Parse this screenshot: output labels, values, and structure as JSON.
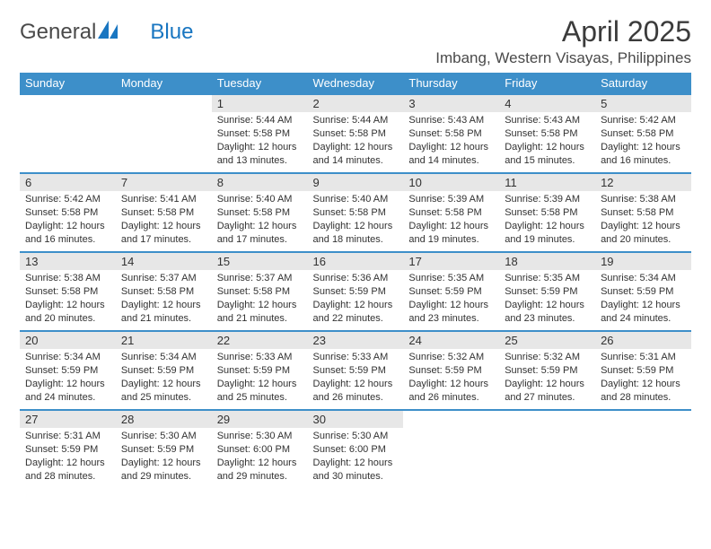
{
  "brand": {
    "part1": "General",
    "part2": "Blue"
  },
  "title": "April 2025",
  "location": "Imbang, Western Visayas, Philippines",
  "colors": {
    "header_bg": "#3d8fc9",
    "header_text": "#ffffff",
    "daynum_bg": "#e7e7e7",
    "row_border": "#3d8fc9",
    "logo_blue": "#1976c1",
    "logo_gray": "#4a4a4a"
  },
  "weekdays": [
    "Sunday",
    "Monday",
    "Tuesday",
    "Wednesday",
    "Thursday",
    "Friday",
    "Saturday"
  ],
  "rows": [
    [
      null,
      null,
      {
        "n": "1",
        "sr": "Sunrise: 5:44 AM",
        "ss": "Sunset: 5:58 PM",
        "d1": "Daylight: 12 hours",
        "d2": "and 13 minutes."
      },
      {
        "n": "2",
        "sr": "Sunrise: 5:44 AM",
        "ss": "Sunset: 5:58 PM",
        "d1": "Daylight: 12 hours",
        "d2": "and 14 minutes."
      },
      {
        "n": "3",
        "sr": "Sunrise: 5:43 AM",
        "ss": "Sunset: 5:58 PM",
        "d1": "Daylight: 12 hours",
        "d2": "and 14 minutes."
      },
      {
        "n": "4",
        "sr": "Sunrise: 5:43 AM",
        "ss": "Sunset: 5:58 PM",
        "d1": "Daylight: 12 hours",
        "d2": "and 15 minutes."
      },
      {
        "n": "5",
        "sr": "Sunrise: 5:42 AM",
        "ss": "Sunset: 5:58 PM",
        "d1": "Daylight: 12 hours",
        "d2": "and 16 minutes."
      }
    ],
    [
      {
        "n": "6",
        "sr": "Sunrise: 5:42 AM",
        "ss": "Sunset: 5:58 PM",
        "d1": "Daylight: 12 hours",
        "d2": "and 16 minutes."
      },
      {
        "n": "7",
        "sr": "Sunrise: 5:41 AM",
        "ss": "Sunset: 5:58 PM",
        "d1": "Daylight: 12 hours",
        "d2": "and 17 minutes."
      },
      {
        "n": "8",
        "sr": "Sunrise: 5:40 AM",
        "ss": "Sunset: 5:58 PM",
        "d1": "Daylight: 12 hours",
        "d2": "and 17 minutes."
      },
      {
        "n": "9",
        "sr": "Sunrise: 5:40 AM",
        "ss": "Sunset: 5:58 PM",
        "d1": "Daylight: 12 hours",
        "d2": "and 18 minutes."
      },
      {
        "n": "10",
        "sr": "Sunrise: 5:39 AM",
        "ss": "Sunset: 5:58 PM",
        "d1": "Daylight: 12 hours",
        "d2": "and 19 minutes."
      },
      {
        "n": "11",
        "sr": "Sunrise: 5:39 AM",
        "ss": "Sunset: 5:58 PM",
        "d1": "Daylight: 12 hours",
        "d2": "and 19 minutes."
      },
      {
        "n": "12",
        "sr": "Sunrise: 5:38 AM",
        "ss": "Sunset: 5:58 PM",
        "d1": "Daylight: 12 hours",
        "d2": "and 20 minutes."
      }
    ],
    [
      {
        "n": "13",
        "sr": "Sunrise: 5:38 AM",
        "ss": "Sunset: 5:58 PM",
        "d1": "Daylight: 12 hours",
        "d2": "and 20 minutes."
      },
      {
        "n": "14",
        "sr": "Sunrise: 5:37 AM",
        "ss": "Sunset: 5:58 PM",
        "d1": "Daylight: 12 hours",
        "d2": "and 21 minutes."
      },
      {
        "n": "15",
        "sr": "Sunrise: 5:37 AM",
        "ss": "Sunset: 5:58 PM",
        "d1": "Daylight: 12 hours",
        "d2": "and 21 minutes."
      },
      {
        "n": "16",
        "sr": "Sunrise: 5:36 AM",
        "ss": "Sunset: 5:59 PM",
        "d1": "Daylight: 12 hours",
        "d2": "and 22 minutes."
      },
      {
        "n": "17",
        "sr": "Sunrise: 5:35 AM",
        "ss": "Sunset: 5:59 PM",
        "d1": "Daylight: 12 hours",
        "d2": "and 23 minutes."
      },
      {
        "n": "18",
        "sr": "Sunrise: 5:35 AM",
        "ss": "Sunset: 5:59 PM",
        "d1": "Daylight: 12 hours",
        "d2": "and 23 minutes."
      },
      {
        "n": "19",
        "sr": "Sunrise: 5:34 AM",
        "ss": "Sunset: 5:59 PM",
        "d1": "Daylight: 12 hours",
        "d2": "and 24 minutes."
      }
    ],
    [
      {
        "n": "20",
        "sr": "Sunrise: 5:34 AM",
        "ss": "Sunset: 5:59 PM",
        "d1": "Daylight: 12 hours",
        "d2": "and 24 minutes."
      },
      {
        "n": "21",
        "sr": "Sunrise: 5:34 AM",
        "ss": "Sunset: 5:59 PM",
        "d1": "Daylight: 12 hours",
        "d2": "and 25 minutes."
      },
      {
        "n": "22",
        "sr": "Sunrise: 5:33 AM",
        "ss": "Sunset: 5:59 PM",
        "d1": "Daylight: 12 hours",
        "d2": "and 25 minutes."
      },
      {
        "n": "23",
        "sr": "Sunrise: 5:33 AM",
        "ss": "Sunset: 5:59 PM",
        "d1": "Daylight: 12 hours",
        "d2": "and 26 minutes."
      },
      {
        "n": "24",
        "sr": "Sunrise: 5:32 AM",
        "ss": "Sunset: 5:59 PM",
        "d1": "Daylight: 12 hours",
        "d2": "and 26 minutes."
      },
      {
        "n": "25",
        "sr": "Sunrise: 5:32 AM",
        "ss": "Sunset: 5:59 PM",
        "d1": "Daylight: 12 hours",
        "d2": "and 27 minutes."
      },
      {
        "n": "26",
        "sr": "Sunrise: 5:31 AM",
        "ss": "Sunset: 5:59 PM",
        "d1": "Daylight: 12 hours",
        "d2": "and 28 minutes."
      }
    ],
    [
      {
        "n": "27",
        "sr": "Sunrise: 5:31 AM",
        "ss": "Sunset: 5:59 PM",
        "d1": "Daylight: 12 hours",
        "d2": "and 28 minutes."
      },
      {
        "n": "28",
        "sr": "Sunrise: 5:30 AM",
        "ss": "Sunset: 5:59 PM",
        "d1": "Daylight: 12 hours",
        "d2": "and 29 minutes."
      },
      {
        "n": "29",
        "sr": "Sunrise: 5:30 AM",
        "ss": "Sunset: 6:00 PM",
        "d1": "Daylight: 12 hours",
        "d2": "and 29 minutes."
      },
      {
        "n": "30",
        "sr": "Sunrise: 5:30 AM",
        "ss": "Sunset: 6:00 PM",
        "d1": "Daylight: 12 hours",
        "d2": "and 30 minutes."
      },
      null,
      null,
      null
    ]
  ]
}
